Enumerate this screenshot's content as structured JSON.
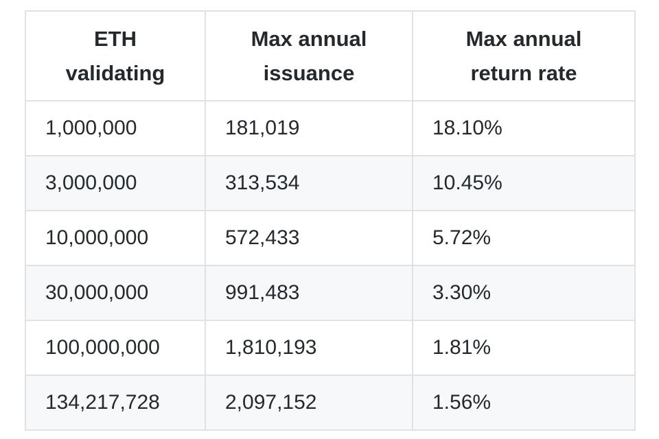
{
  "table": {
    "headers": [
      {
        "line1": "ETH",
        "line2": "validating"
      },
      {
        "line1": "Max annual",
        "line2": "issuance"
      },
      {
        "line1": "Max annual",
        "line2": "return rate"
      }
    ],
    "rows": [
      [
        "1,000,000",
        "181,019",
        "18.10%"
      ],
      [
        "3,000,000",
        "313,534",
        "10.45%"
      ],
      [
        "10,000,000",
        "572,433",
        "5.72%"
      ],
      [
        "30,000,000",
        "991,483",
        "3.30%"
      ],
      [
        "100,000,000",
        "1,810,193",
        "1.81%"
      ],
      [
        "134,217,728",
        "2,097,152",
        "1.56%"
      ]
    ]
  }
}
